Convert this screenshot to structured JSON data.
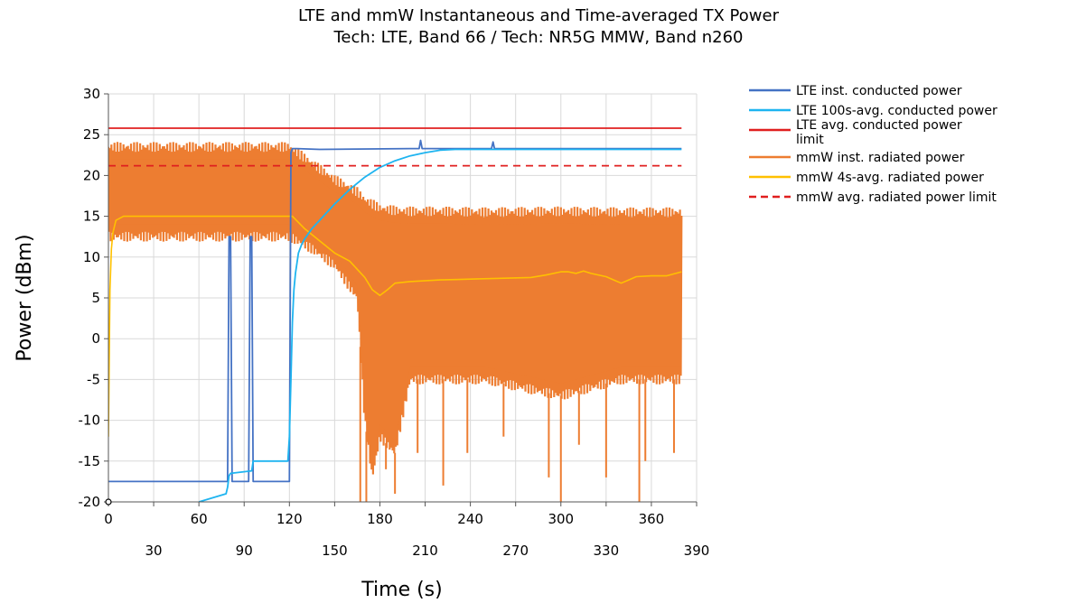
{
  "chart_data": {
    "type": "line",
    "title": "LTE and mmW Instantaneous and Time-averaged TX Power",
    "subtitle": "Tech: LTE, Band 66 / Tech: NR5G MMW, Band n260",
    "xlabel": "Time (s)",
    "ylabel": "Power (dBm)",
    "xlim": [
      0,
      390
    ],
    "ylim": [
      -20,
      30
    ],
    "x_ticks_row1": [
      0,
      60,
      120,
      180,
      240,
      300,
      360
    ],
    "x_ticks_row2": [
      30,
      90,
      150,
      210,
      270,
      330,
      390
    ],
    "y_ticks": [
      30,
      25,
      20,
      15,
      10,
      5,
      0,
      -5,
      -10,
      -15,
      -20
    ],
    "grid": true,
    "legend_position": "right",
    "series": [
      {
        "name": "LTE inst. conducted power",
        "color": "#4472c4",
        "style": "solid",
        "x": [
          0,
          79,
          80,
          81,
          82,
          93,
          94,
          95,
          96,
          120,
          121,
          122,
          125,
          140,
          200,
          206,
          207,
          208,
          254,
          255,
          256,
          380
        ],
        "y": [
          -17.5,
          -17.5,
          12.5,
          12.5,
          -17.5,
          -17.5,
          12.5,
          12.5,
          -17.5,
          -17.5,
          22.8,
          23.3,
          23.3,
          23.2,
          23.3,
          23.3,
          24.3,
          23.3,
          23.3,
          24.1,
          23.3,
          23.3
        ]
      },
      {
        "name": "LTE 100s-avg. conducted power",
        "color": "#1eb4f0",
        "style": "solid",
        "x": [
          60,
          78,
          79,
          80,
          81,
          95,
          96,
          119,
          120,
          121,
          122,
          123,
          124,
          126,
          128,
          130,
          135,
          140,
          150,
          160,
          170,
          180,
          190,
          200,
          210,
          220,
          230,
          380
        ],
        "y": [
          -20.0,
          -19.0,
          -18.2,
          -16.8,
          -16.5,
          -16.2,
          -15.0,
          -15.0,
          -12.0,
          -5.0,
          2.0,
          6.0,
          8.0,
          10.5,
          11.5,
          12.2,
          13.5,
          14.5,
          16.5,
          18.3,
          19.8,
          21.0,
          21.8,
          22.4,
          22.8,
          23.1,
          23.2,
          23.2
        ]
      },
      {
        "name": "LTE avg. conducted power limit",
        "color": "#e01f1f",
        "style": "solid",
        "x": [
          0,
          380
        ],
        "y": [
          25.8,
          25.8
        ]
      },
      {
        "name": "mmW inst. radiated power",
        "color": "#ed7d31",
        "style": "band",
        "x": [
          0,
          120,
          135,
          150,
          165,
          170,
          175,
          180,
          190,
          200,
          220,
          250,
          300,
          340,
          380
        ],
        "y_upper": [
          23.5,
          23.5,
          21.5,
          19.5,
          18.0,
          17.0,
          16.5,
          16.0,
          15.7,
          15.6,
          15.6,
          15.5,
          15.6,
          15.5,
          15.5
        ],
        "y_lower": [
          12.5,
          12.5,
          11.0,
          9.0,
          5.0,
          -10.0,
          -17.0,
          -12.0,
          -14.0,
          -5.0,
          -5.0,
          -5.0,
          -7.0,
          -5.0,
          -5.0
        ],
        "dips": [
          [
            167,
            -20
          ],
          [
            171,
            -20
          ],
          [
            184,
            -16
          ],
          [
            190,
            -19
          ],
          [
            205,
            -14
          ],
          [
            222,
            -18
          ],
          [
            238,
            -14
          ],
          [
            262,
            -12
          ],
          [
            292,
            -17
          ],
          [
            300,
            -20
          ],
          [
            312,
            -13
          ],
          [
            330,
            -17
          ],
          [
            352,
            -20
          ],
          [
            356,
            -15
          ],
          [
            375,
            -14
          ]
        ]
      },
      {
        "name": "mmW 4s-avg. radiated power",
        "color": "#ffc000",
        "style": "solid",
        "x": [
          0,
          1,
          2,
          3,
          5,
          10,
          60,
          118,
          122,
          130,
          140,
          150,
          160,
          170,
          175,
          180,
          185,
          190,
          200,
          220,
          240,
          260,
          280,
          290,
          300,
          305,
          310,
          315,
          320,
          330,
          335,
          340,
          345,
          350,
          360,
          370,
          380
        ],
        "y": [
          -12.0,
          6.0,
          11.0,
          13.0,
          14.5,
          15.0,
          15.0,
          15.0,
          15.0,
          13.5,
          12.0,
          10.5,
          9.5,
          7.5,
          6.0,
          5.3,
          6.0,
          6.8,
          7.0,
          7.2,
          7.3,
          7.4,
          7.5,
          7.8,
          8.2,
          8.2,
          8.0,
          8.3,
          8.0,
          7.6,
          7.2,
          6.8,
          7.2,
          7.6,
          7.7,
          7.7,
          8.2
        ]
      },
      {
        "name": "mmW avg. radiated power limit",
        "color": "#e01f1f",
        "style": "dashed",
        "x": [
          0,
          380
        ],
        "y": [
          21.2,
          21.2
        ]
      }
    ]
  }
}
